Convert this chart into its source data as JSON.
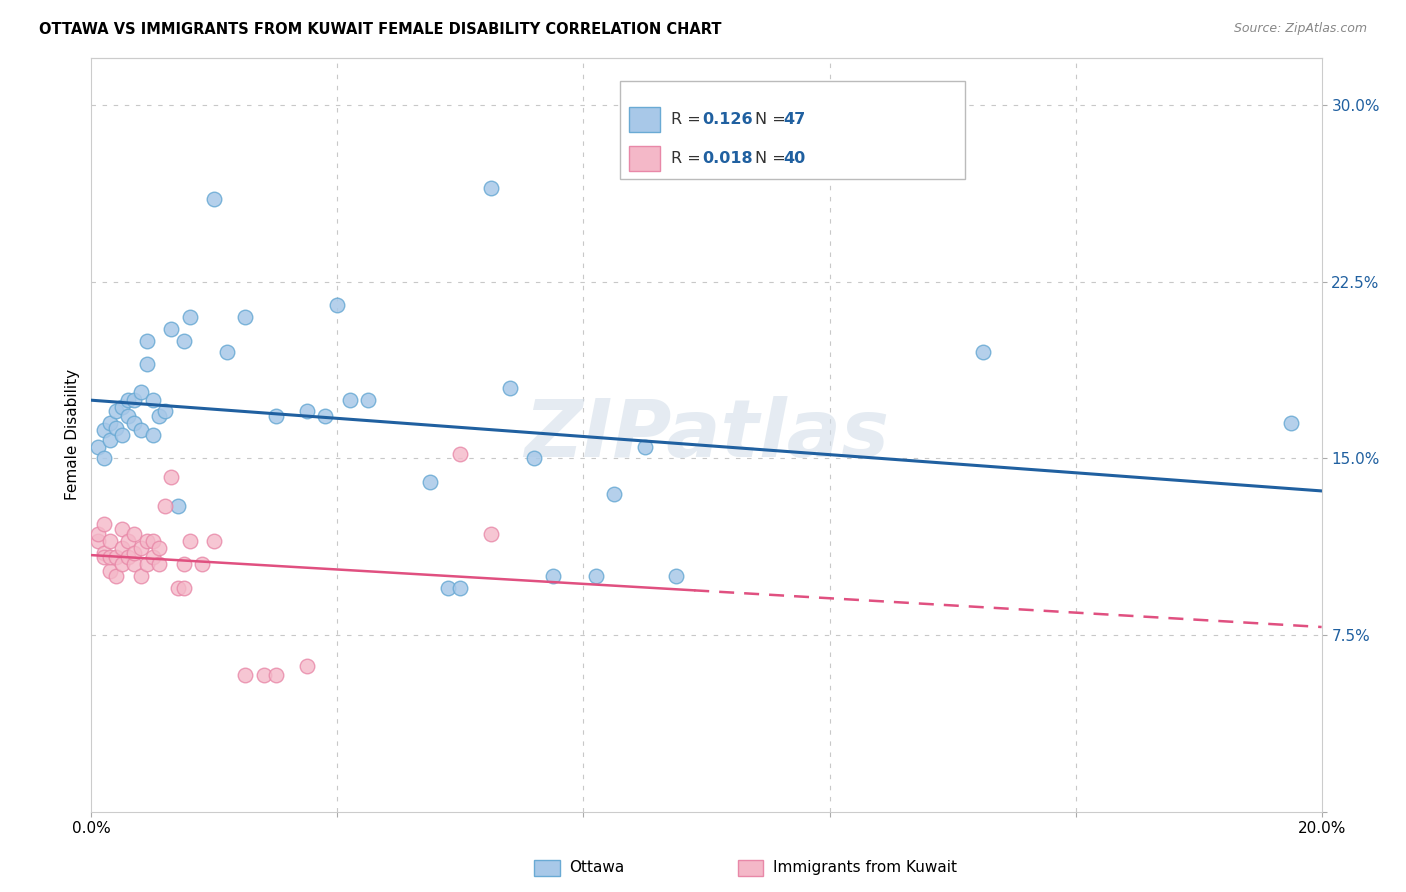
{
  "title": "OTTAWA VS IMMIGRANTS FROM KUWAIT FEMALE DISABILITY CORRELATION CHART",
  "source": "Source: ZipAtlas.com",
  "ylabel": "Female Disability",
  "watermark": "ZIPatlas",
  "xlim": [
    0.0,
    0.2
  ],
  "ylim": [
    0.0,
    0.32
  ],
  "legend_R1": "0.126",
  "legend_N1": "47",
  "legend_R2": "0.018",
  "legend_N2": "40",
  "ottawa_color": "#a8c8e8",
  "ottawa_edge_color": "#6aaad4",
  "kuwait_color": "#f4b8c8",
  "kuwait_edge_color": "#e888a8",
  "ottawa_line_color": "#2060a0",
  "kuwait_line_color": "#e05080",
  "bg_color": "#ffffff",
  "grid_color": "#c8c8c8",
  "ottawa_scatter_x": [
    0.001,
    0.002,
    0.002,
    0.003,
    0.003,
    0.004,
    0.004,
    0.005,
    0.005,
    0.006,
    0.006,
    0.007,
    0.007,
    0.008,
    0.008,
    0.009,
    0.009,
    0.01,
    0.01,
    0.011,
    0.012,
    0.013,
    0.014,
    0.015,
    0.016,
    0.02,
    0.022,
    0.025,
    0.03,
    0.035,
    0.038,
    0.04,
    0.042,
    0.045,
    0.055,
    0.058,
    0.06,
    0.065,
    0.068,
    0.072,
    0.075,
    0.082,
    0.085,
    0.09,
    0.095,
    0.145,
    0.195
  ],
  "ottawa_scatter_y": [
    0.155,
    0.162,
    0.15,
    0.165,
    0.158,
    0.17,
    0.163,
    0.172,
    0.16,
    0.175,
    0.168,
    0.175,
    0.165,
    0.178,
    0.162,
    0.19,
    0.2,
    0.175,
    0.16,
    0.168,
    0.17,
    0.205,
    0.13,
    0.2,
    0.21,
    0.26,
    0.195,
    0.21,
    0.168,
    0.17,
    0.168,
    0.215,
    0.175,
    0.175,
    0.14,
    0.095,
    0.095,
    0.265,
    0.18,
    0.15,
    0.1,
    0.1,
    0.135,
    0.155,
    0.1,
    0.195,
    0.165
  ],
  "kuwait_scatter_x": [
    0.001,
    0.001,
    0.002,
    0.002,
    0.002,
    0.003,
    0.003,
    0.003,
    0.004,
    0.004,
    0.005,
    0.005,
    0.005,
    0.006,
    0.006,
    0.007,
    0.007,
    0.007,
    0.008,
    0.008,
    0.009,
    0.009,
    0.01,
    0.01,
    0.011,
    0.011,
    0.012,
    0.013,
    0.014,
    0.015,
    0.015,
    0.016,
    0.018,
    0.02,
    0.025,
    0.028,
    0.03,
    0.035,
    0.06,
    0.065
  ],
  "kuwait_scatter_y": [
    0.115,
    0.118,
    0.11,
    0.108,
    0.122,
    0.102,
    0.108,
    0.115,
    0.1,
    0.108,
    0.105,
    0.112,
    0.12,
    0.108,
    0.115,
    0.105,
    0.11,
    0.118,
    0.1,
    0.112,
    0.105,
    0.115,
    0.108,
    0.115,
    0.105,
    0.112,
    0.13,
    0.142,
    0.095,
    0.095,
    0.105,
    0.115,
    0.105,
    0.115,
    0.058,
    0.058,
    0.058,
    0.062,
    0.152,
    0.118
  ]
}
